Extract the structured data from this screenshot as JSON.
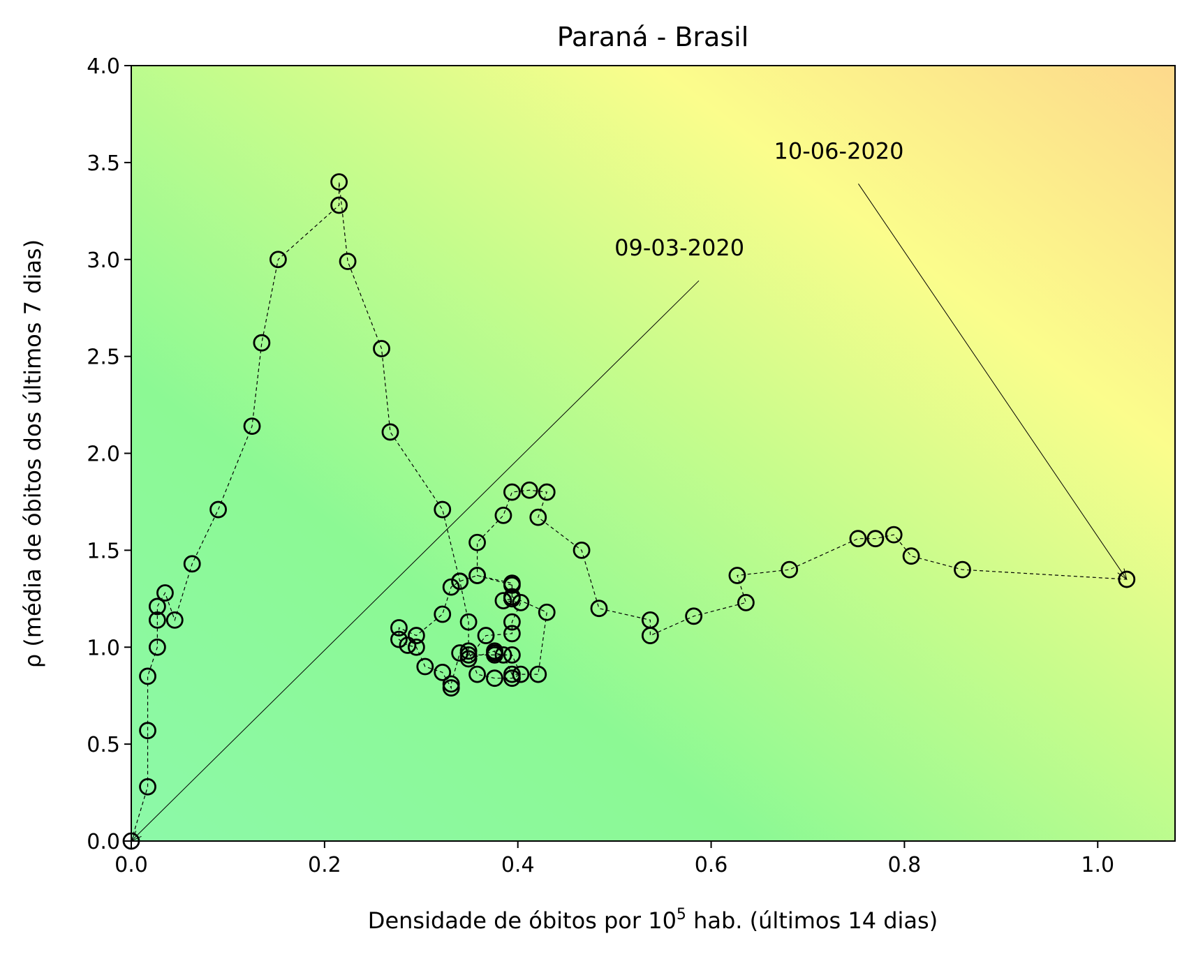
{
  "chart_data": {
    "type": "scatter",
    "title": "Paraná - Brasil",
    "xlabel_prefix": "Densidade de óbitos por 10",
    "xlabel_sup": "5",
    "xlabel_suffix": " hab. (últimos 14 dias)",
    "ylabel": "ρ (média de óbitos dos últimos 7 dias)",
    "xlim": [
      0,
      1.08
    ],
    "ylim": [
      0,
      4.0
    ],
    "xticks": [
      0.0,
      0.2,
      0.4,
      0.6,
      0.8,
      1.0
    ],
    "xtick_labels": [
      "0.0",
      "0.2",
      "0.4",
      "0.6",
      "0.8",
      "1.0"
    ],
    "yticks": [
      0.0,
      0.5,
      1.0,
      1.5,
      2.0,
      2.5,
      3.0,
      3.5,
      4.0
    ],
    "ytick_labels": [
      "0.0",
      "0.5",
      "1.0",
      "1.5",
      "2.0",
      "2.5",
      "3.0",
      "3.5",
      "4.0"
    ],
    "grid": false,
    "marker": "open circle",
    "line_style": "dashed",
    "background": "gradient green (bottom-left) to yellow to orange (top-right)",
    "colors": {
      "green": "#8cf99c",
      "yellow": "#fdfd8c",
      "orange": "#fdd98c",
      "marker": "#000000"
    },
    "annotations": [
      {
        "text": "09-03-2020",
        "text_x": 0.5,
        "text_y": 3.02,
        "arrow_to": [
          0.0,
          0.0
        ]
      },
      {
        "text": "10-06-2020",
        "text_x": 0.665,
        "text_y": 3.52,
        "arrow_to": [
          1.03,
          1.35
        ]
      }
    ],
    "points": [
      [
        0.0,
        0.0
      ],
      [
        0.017,
        0.28
      ],
      [
        0.017,
        0.57
      ],
      [
        0.017,
        0.85
      ],
      [
        0.027,
        1.0
      ],
      [
        0.027,
        1.14
      ],
      [
        0.027,
        1.21
      ],
      [
        0.035,
        1.28
      ],
      [
        0.045,
        1.14
      ],
      [
        0.063,
        1.43
      ],
      [
        0.09,
        1.71
      ],
      [
        0.125,
        2.14
      ],
      [
        0.135,
        2.57
      ],
      [
        0.152,
        3.0
      ],
      [
        0.215,
        3.28
      ],
      [
        0.215,
        3.4
      ],
      [
        0.224,
        2.99
      ],
      [
        0.259,
        2.54
      ],
      [
        0.268,
        2.11
      ],
      [
        0.322,
        1.71
      ],
      [
        0.34,
        1.34
      ],
      [
        0.349,
        1.13
      ],
      [
        0.349,
        0.98
      ],
      [
        0.358,
        0.86
      ],
      [
        0.376,
        0.84
      ],
      [
        0.394,
        0.84
      ],
      [
        0.403,
        0.86
      ],
      [
        0.394,
        0.96
      ],
      [
        0.376,
        0.96
      ],
      [
        0.349,
        0.96
      ],
      [
        0.34,
        0.97
      ],
      [
        0.331,
        0.81
      ],
      [
        0.331,
        0.79
      ],
      [
        0.322,
        0.87
      ],
      [
        0.304,
        0.9
      ],
      [
        0.295,
        1.0
      ],
      [
        0.286,
        1.01
      ],
      [
        0.277,
        1.04
      ],
      [
        0.277,
        1.1
      ],
      [
        0.295,
        1.06
      ],
      [
        0.322,
        1.17
      ],
      [
        0.331,
        1.31
      ],
      [
        0.34,
        1.34
      ],
      [
        0.358,
        1.37
      ],
      [
        0.394,
        1.32
      ],
      [
        0.394,
        1.25
      ],
      [
        0.385,
        1.24
      ],
      [
        0.403,
        1.23
      ],
      [
        0.394,
        1.13
      ],
      [
        0.394,
        1.07
      ],
      [
        0.367,
        1.06
      ],
      [
        0.349,
        0.94
      ],
      [
        0.376,
        0.98
      ],
      [
        0.376,
        0.97
      ],
      [
        0.385,
        0.96
      ],
      [
        0.394,
        0.86
      ],
      [
        0.421,
        0.86
      ],
      [
        0.43,
        1.18
      ],
      [
        0.394,
        1.26
      ],
      [
        0.394,
        1.33
      ],
      [
        0.358,
        1.37
      ],
      [
        0.358,
        1.54
      ],
      [
        0.385,
        1.68
      ],
      [
        0.394,
        1.8
      ],
      [
        0.412,
        1.81
      ],
      [
        0.43,
        1.8
      ],
      [
        0.421,
        1.67
      ],
      [
        0.466,
        1.5
      ],
      [
        0.484,
        1.2
      ],
      [
        0.537,
        1.14
      ],
      [
        0.537,
        1.06
      ],
      [
        0.582,
        1.16
      ],
      [
        0.636,
        1.23
      ],
      [
        0.627,
        1.37
      ],
      [
        0.681,
        1.4
      ],
      [
        0.752,
        1.56
      ],
      [
        0.77,
        1.56
      ],
      [
        0.789,
        1.58
      ],
      [
        0.807,
        1.47
      ],
      [
        0.86,
        1.4
      ],
      [
        1.03,
        1.35
      ]
    ]
  }
}
